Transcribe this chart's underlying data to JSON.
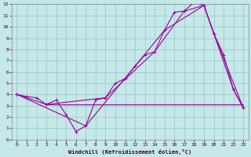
{
  "xlabel": "Windchill (Refroidissement éolien,°C)",
  "background_color": "#c5e8e8",
  "grid_color": "#a0c8c8",
  "line_color": "#990099",
  "xlim": [
    -0.5,
    23.5
  ],
  "ylim": [
    0,
    12
  ],
  "xticks": [
    0,
    1,
    2,
    3,
    4,
    5,
    6,
    7,
    8,
    9,
    10,
    11,
    12,
    13,
    14,
    15,
    16,
    17,
    18,
    19,
    20,
    21,
    22,
    23
  ],
  "yticks": [
    0,
    1,
    2,
    3,
    4,
    5,
    6,
    7,
    8,
    9,
    10,
    11,
    12
  ],
  "line1_x": [
    0,
    1,
    2,
    3,
    4,
    5,
    6,
    7,
    8,
    9,
    10,
    11,
    12,
    13,
    14,
    15,
    16,
    17,
    18,
    19,
    20,
    21,
    22,
    23
  ],
  "line1_y": [
    4,
    3.8,
    3.7,
    3.1,
    3.5,
    2.2,
    0.7,
    1.2,
    3.5,
    3.7,
    5.0,
    5.4,
    6.5,
    7.5,
    7.8,
    9.7,
    11.3,
    11.4,
    12.2,
    11.9,
    9.4,
    7.5,
    4.4,
    2.8
  ],
  "line2_x": [
    0,
    3,
    9,
    14,
    17,
    19,
    22,
    23
  ],
  "line2_y": [
    4,
    3.1,
    3.7,
    7.8,
    11.4,
    11.9,
    4.4,
    2.8
  ],
  "line3_x": [
    0,
    7,
    12,
    15,
    19,
    20,
    23
  ],
  "line3_y": [
    4,
    1.2,
    6.5,
    9.7,
    11.9,
    9.4,
    2.8
  ],
  "line4_x": [
    3,
    23
  ],
  "line4_y": [
    3.1,
    3.1
  ]
}
